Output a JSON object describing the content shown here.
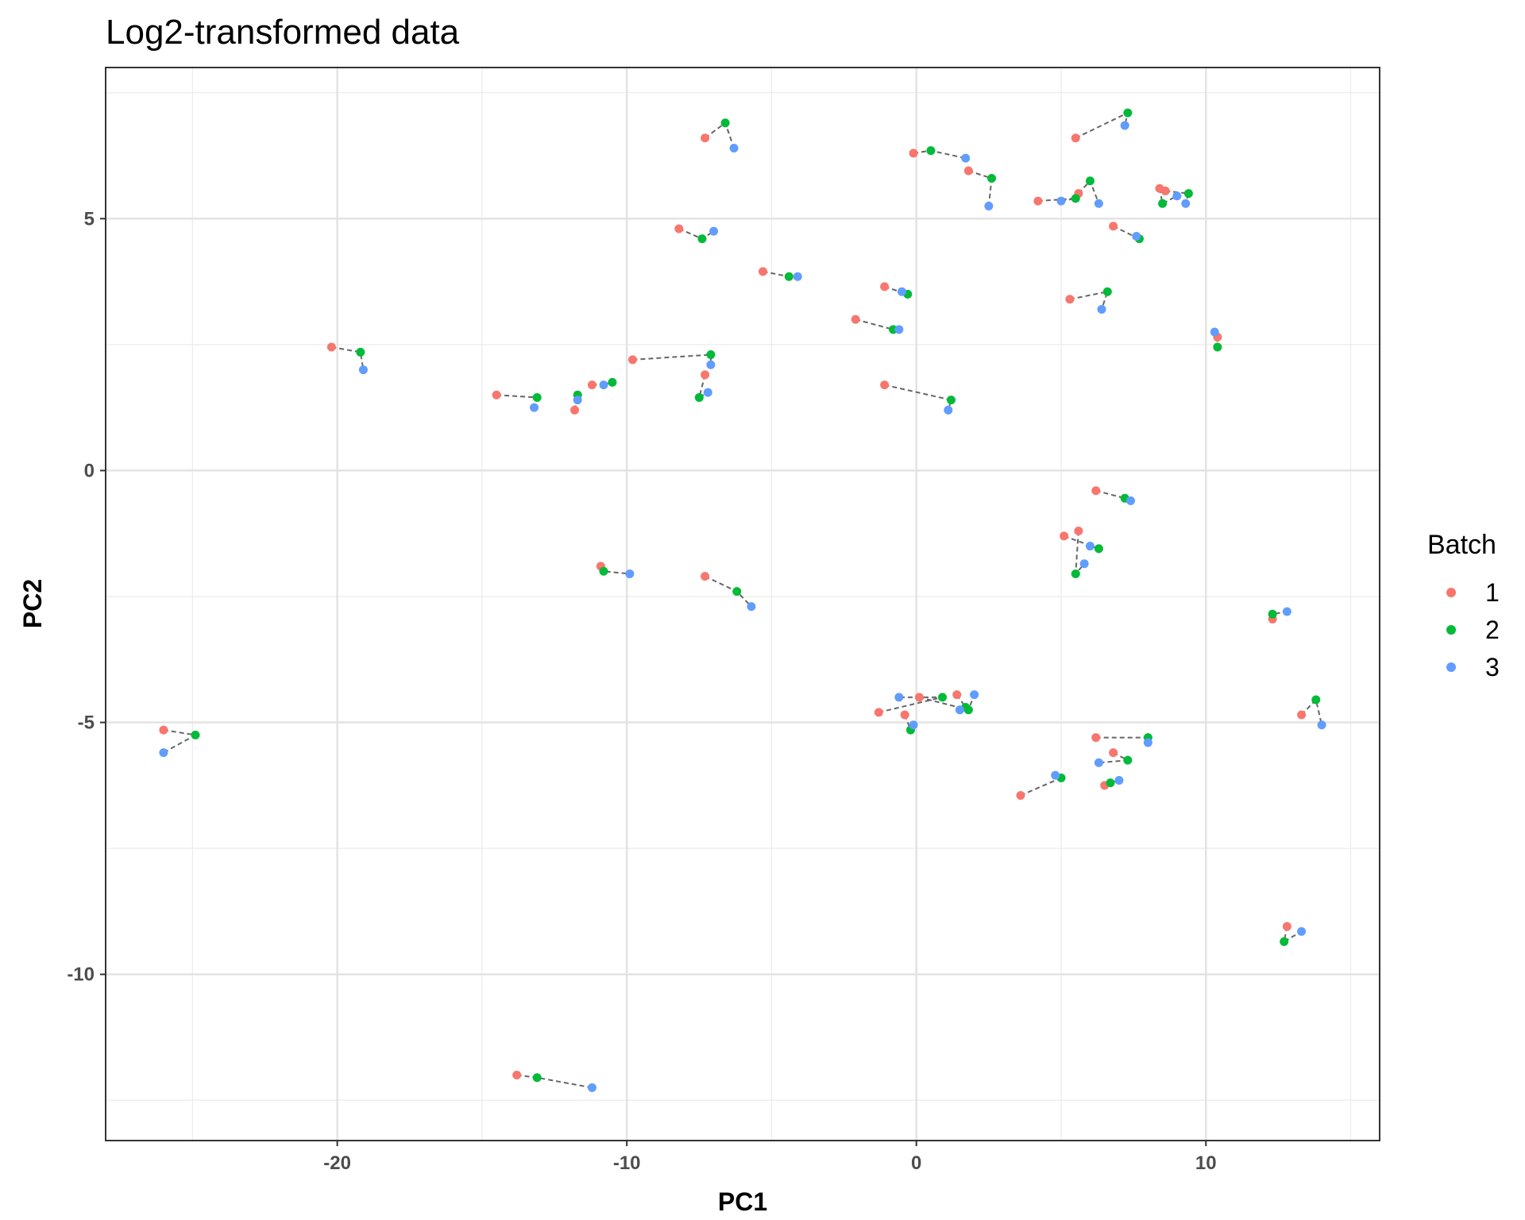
{
  "chart_data": {
    "type": "scatter",
    "title": "Log2-transformed data",
    "xlabel": "PC1",
    "ylabel": "PC2",
    "xlim": [
      -28,
      16
    ],
    "ylim": [
      -13.3,
      8.0
    ],
    "x_ticks": [
      -20,
      -10,
      0,
      10
    ],
    "y_ticks": [
      5,
      0,
      -5,
      -10
    ],
    "x_tick_labels": [
      "-20",
      "-10",
      "0",
      "10"
    ],
    "y_tick_labels": [
      "5",
      "0",
      "-5",
      "-10"
    ],
    "grid": true,
    "legend": {
      "title": "Batch",
      "position": "right",
      "entries": [
        {
          "label": "1",
          "color": "#F8766D"
        },
        {
          "label": "2",
          "color": "#00BA38"
        },
        {
          "label": "3",
          "color": "#619CFF"
        }
      ]
    },
    "connector_color": "#666666",
    "groups": [
      {
        "b1": [
          -7.3,
          6.6
        ],
        "b2": [
          -6.6,
          6.9
        ],
        "b3": [
          -6.3,
          6.4
        ]
      },
      {
        "b1": [
          -0.1,
          6.3
        ],
        "b2": [
          0.5,
          6.35
        ],
        "b3": [
          1.7,
          6.2
        ]
      },
      {
        "b1": [
          1.8,
          5.95
        ],
        "b2": [
          2.6,
          5.8
        ],
        "b3": [
          2.5,
          5.25
        ]
      },
      {
        "b1": [
          5.5,
          6.6
        ],
        "b2": [
          7.3,
          7.1
        ],
        "b3": [
          7.2,
          6.85
        ]
      },
      {
        "b1": [
          4.2,
          5.35
        ],
        "b2": [
          5.5,
          5.4
        ],
        "b3": [
          5.0,
          5.35
        ]
      },
      {
        "b1": [
          5.6,
          5.5
        ],
        "b2": [
          6.0,
          5.75
        ],
        "b3": [
          6.3,
          5.3
        ]
      },
      {
        "b1": [
          8.4,
          5.6
        ],
        "b2": [
          8.5,
          5.3
        ],
        "b3": [
          9.0,
          5.45
        ]
      },
      {
        "b1": [
          8.6,
          5.55
        ],
        "b2": [
          9.4,
          5.5
        ],
        "b3": [
          9.3,
          5.3
        ]
      },
      {
        "b1": [
          6.8,
          4.85
        ],
        "b2": [
          7.7,
          4.6
        ],
        "b3": [
          7.6,
          4.65
        ]
      },
      {
        "b1": [
          -8.2,
          4.8
        ],
        "b2": [
          -7.4,
          4.6
        ],
        "b3": [
          -7.0,
          4.75
        ]
      },
      {
        "b1": [
          -5.3,
          3.95
        ],
        "b2": [
          -4.4,
          3.85
        ],
        "b3": [
          -4.1,
          3.85
        ]
      },
      {
        "b1": [
          -1.1,
          3.65
        ],
        "b2": [
          -0.3,
          3.5
        ],
        "b3": [
          -0.5,
          3.55
        ]
      },
      {
        "b1": [
          5.3,
          3.4
        ],
        "b2": [
          6.6,
          3.55
        ],
        "b3": [
          6.4,
          3.2
        ]
      },
      {
        "b1": [
          -2.1,
          3.0
        ],
        "b2": [
          -0.8,
          2.8
        ],
        "b3": [
          -0.6,
          2.8
        ]
      },
      {
        "b1": [
          10.4,
          2.65
        ],
        "b2": [
          10.4,
          2.45
        ],
        "b3": [
          10.3,
          2.75
        ]
      },
      {
        "b1": [
          -20.2,
          2.45
        ],
        "b2": [
          -19.2,
          2.35
        ],
        "b3": [
          -19.1,
          2.0
        ]
      },
      {
        "b1": [
          -9.8,
          2.2
        ],
        "b2": [
          -7.1,
          2.3
        ],
        "b3": [
          -7.1,
          2.1
        ]
      },
      {
        "b1": [
          -7.3,
          1.9
        ],
        "b2": [
          -7.5,
          1.45
        ],
        "b3": [
          -7.2,
          1.55
        ]
      },
      {
        "b1": [
          -1.1,
          1.7
        ],
        "b2": [
          1.2,
          1.4
        ],
        "b3": [
          1.1,
          1.2
        ]
      },
      {
        "b1": [
          -14.5,
          1.5
        ],
        "b2": [
          -13.1,
          1.45
        ],
        "b3": [
          -13.2,
          1.25
        ]
      },
      {
        "b1": [
          -11.2,
          1.7
        ],
        "b2": [
          -10.5,
          1.75
        ],
        "b3": [
          -10.8,
          1.7
        ]
      },
      {
        "b1": [
          -11.8,
          1.2
        ],
        "b2": [
          -11.7,
          1.5
        ],
        "b3": [
          -11.7,
          1.4
        ]
      },
      {
        "b1": [
          6.2,
          -0.4
        ],
        "b2": [
          7.2,
          -0.55
        ],
        "b3": [
          7.4,
          -0.6
        ]
      },
      {
        "b1": [
          5.1,
          -1.3
        ],
        "b2": [
          6.3,
          -1.55
        ],
        "b3": [
          6.0,
          -1.5
        ]
      },
      {
        "b1": [
          5.6,
          -1.2
        ],
        "b2": [
          5.5,
          -2.05
        ],
        "b3": [
          5.8,
          -1.85
        ]
      },
      {
        "b1": [
          -10.9,
          -1.9
        ],
        "b2": [
          -10.8,
          -2.0
        ],
        "b3": [
          -9.9,
          -2.05
        ]
      },
      {
        "b1": [
          -7.3,
          -2.1
        ],
        "b2": [
          -6.2,
          -2.4
        ],
        "b3": [
          -5.7,
          -2.7
        ]
      },
      {
        "b1": [
          12.3,
          -2.95
        ],
        "b2": [
          12.3,
          -2.85
        ],
        "b3": [
          12.8,
          -2.8
        ]
      },
      {
        "b1": [
          -0.4,
          -4.85
        ],
        "b2": [
          -0.2,
          -5.15
        ],
        "b3": [
          -0.1,
          -5.05
        ]
      },
      {
        "b1": [
          -1.3,
          -4.8
        ],
        "b2": [
          0.9,
          -4.5
        ],
        "b3": [
          -0.6,
          -4.5
        ]
      },
      {
        "b1": [
          0.1,
          -4.5
        ],
        "b2": [
          1.8,
          -4.75
        ],
        "b3": [
          2.0,
          -4.45
        ]
      },
      {
        "b1": [
          1.4,
          -4.45
        ],
        "b2": [
          1.7,
          -4.7
        ],
        "b3": [
          1.5,
          -4.75
        ]
      },
      {
        "b1": [
          6.2,
          -5.3
        ],
        "b2": [
          8.0,
          -5.3
        ],
        "b3": [
          8.0,
          -5.4
        ]
      },
      {
        "b1": [
          6.8,
          -5.6
        ],
        "b2": [
          7.3,
          -5.75
        ],
        "b3": [
          6.3,
          -5.8
        ]
      },
      {
        "b1": [
          3.6,
          -6.45
        ],
        "b2": [
          5.0,
          -6.1
        ],
        "b3": [
          4.8,
          -6.05
        ]
      },
      {
        "b1": [
          6.5,
          -6.25
        ],
        "b2": [
          6.7,
          -6.2
        ],
        "b3": [
          7.0,
          -6.15
        ]
      },
      {
        "b1": [
          13.3,
          -4.85
        ],
        "b2": [
          13.8,
          -4.55
        ],
        "b3": [
          14.0,
          -5.05
        ]
      },
      {
        "b1": [
          -26.0,
          -5.15
        ],
        "b2": [
          -24.9,
          -5.25
        ],
        "b3": [
          -26.0,
          -5.6
        ]
      },
      {
        "b1": [
          12.8,
          -9.05
        ],
        "b2": [
          12.7,
          -9.35
        ],
        "b3": [
          13.3,
          -9.15
        ]
      },
      {
        "b1": [
          -13.8,
          -12.0
        ],
        "b2": [
          -13.1,
          -12.05
        ],
        "b3": [
          -11.2,
          -12.25
        ]
      }
    ]
  }
}
